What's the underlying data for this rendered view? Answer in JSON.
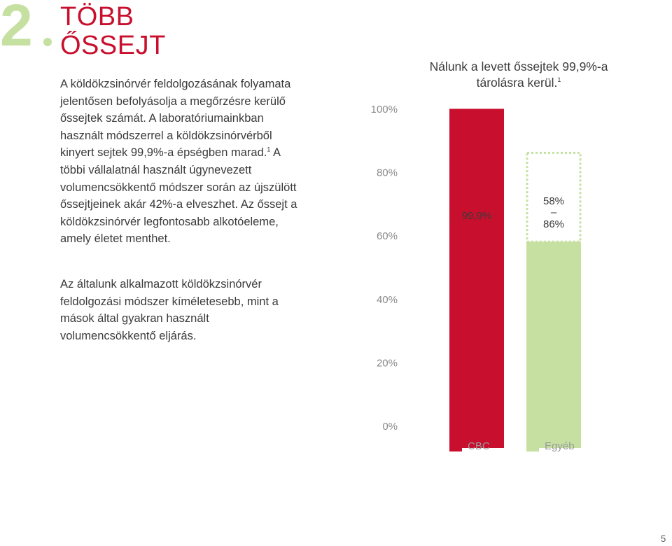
{
  "header": {
    "number": "2",
    "title_line1": "TÖBB",
    "title_line2": "ŐSSEJT"
  },
  "body": {
    "paragraph1_a": "A köldökzsinórvér feldolgozásának folyamata jelentősen befolyásolja a megőrzésre kerülő őssejtek számát. A laboratóriumainkban használt módszerrel a köldökzsinórvérből kinyert sejtek 99,9%-a épségben marad.",
    "paragraph1_sup": "1",
    "paragraph1_b": "A többi vállalatnál használt úgynevezett volumencsökkentő módszer során az újszülött őssejtjeinek akár 42%-a elveszhet. Az őssejt a köldökzsinórvér legfontosabb alkotóeleme, amely életet menthet.",
    "paragraph2": "Az általunk alkalmazott köldökzsinórvér feldolgozási módszer kíméletesebb, mint a mások által gyakran használt volumencsökkentő eljárás."
  },
  "chart_data": {
    "type": "bar",
    "title": "Nálunk a levett őssejtek 99,9%-a tárolásra kerül.",
    "title_sup": "1",
    "ylim": [
      0,
      100
    ],
    "y_ticks": [
      100,
      80,
      60,
      40,
      20,
      0
    ],
    "y_tick_labels": [
      "100%",
      "80%",
      "60%",
      "40%",
      "20%",
      "0%"
    ],
    "grid": false,
    "categories": [
      "CBC",
      "Egyéb"
    ],
    "bars": [
      {
        "name": "CBC",
        "value": 99.9,
        "label": "99,9%",
        "color": "#c8102e"
      },
      {
        "name": "Egyéb",
        "value_min": 58,
        "value_max": 86,
        "label_top": "58%",
        "label_dash": "–",
        "label_bottom": "86%",
        "color": "#c5e0a0"
      }
    ],
    "legend": [
      {
        "label": "CBC",
        "color": "#c8102e"
      },
      {
        "label": "Egyéb",
        "color": "#c5e0a0"
      }
    ],
    "legend_position": "bottom"
  },
  "page_number": "5"
}
